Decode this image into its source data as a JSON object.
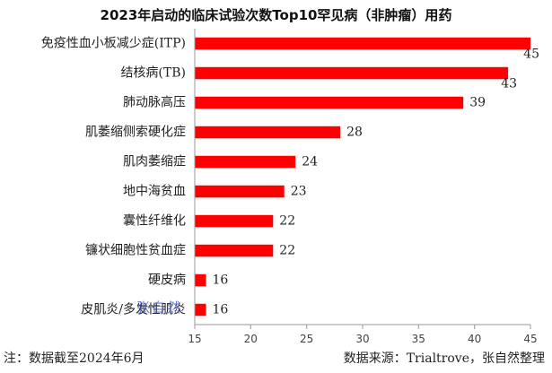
{
  "chart_data": {
    "type": "bar",
    "orientation": "horizontal",
    "title": "2023年启动的临床试验次数Top10罕见病（非肿瘤）用药",
    "categories": [
      "免疫性血小板减少症(ITP)",
      "结核病(TB)",
      "肺动脉高压",
      "肌萎缩侧索硬化症",
      "肌肉萎缩症",
      "地中海贫血",
      "囊性纤维化",
      "镰状细胞性贫血症",
      "硬皮病",
      "皮肌炎/多发性肌炎"
    ],
    "values": [
      45,
      43,
      39,
      28,
      24,
      23,
      22,
      22,
      16,
      16
    ],
    "xlim": [
      15,
      45
    ],
    "xticks": [
      15,
      20,
      25,
      30,
      35,
      40,
      45
    ],
    "bar_color": "#ff0000",
    "grid": false
  },
  "footnote_left": "注：数据截至2024年6月",
  "footnote_right": "数据来源：Trialtrove，张自然整理",
  "watermark": "张自然"
}
